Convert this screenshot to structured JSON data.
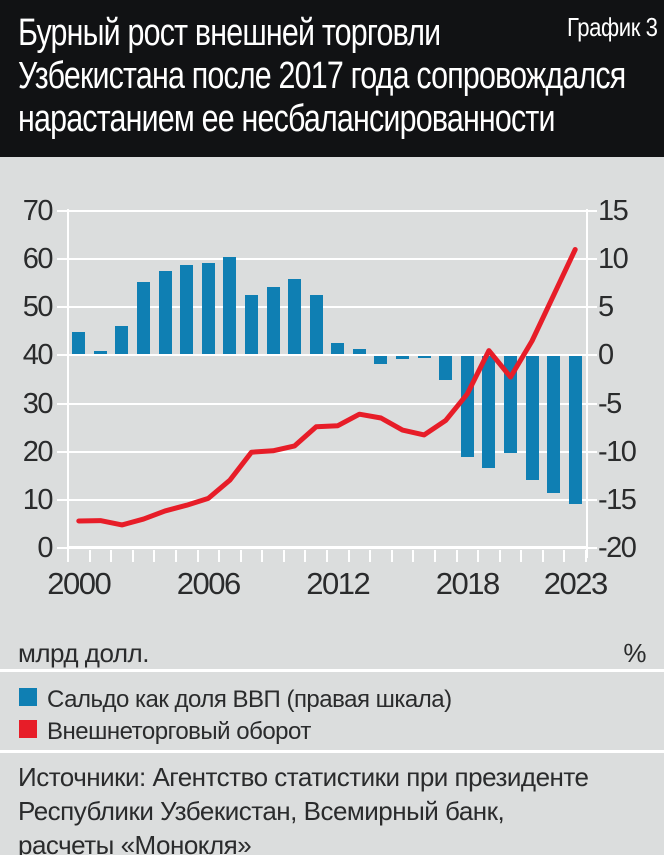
{
  "header": {
    "title_lines": [
      "Бурный рост внешней торговли",
      "Узбекистана после 2017 года сопровождался",
      "нарастанием ее несбалансированности"
    ],
    "corner_label": "График 3"
  },
  "chart_data": {
    "type": "bar+line",
    "x": [
      2000,
      2001,
      2002,
      2003,
      2004,
      2005,
      2006,
      2007,
      2008,
      2009,
      2010,
      2011,
      2012,
      2013,
      2014,
      2015,
      2016,
      2017,
      2018,
      2019,
      2020,
      2021,
      2022,
      2023
    ],
    "x_axis": {
      "tick_labels": [
        "2000",
        "2006",
        "2012",
        "2018",
        "2023"
      ],
      "tick_years": [
        2000,
        2006,
        2012,
        2018,
        2023
      ]
    },
    "left_axis": {
      "unit": "млрд долл.",
      "min": 0,
      "max": 70,
      "ticks": [
        0,
        10,
        20,
        30,
        40,
        50,
        60,
        70
      ]
    },
    "right_axis": {
      "unit": "%",
      "min": -20,
      "max": 15,
      "ticks": [
        -20,
        -15,
        -10,
        -5,
        0,
        5,
        10,
        15
      ]
    },
    "grid": true,
    "legend_position": "bottom",
    "series": [
      {
        "name": "Сальдо как доля ВВП (правая шкала)",
        "type": "bar",
        "axis": "right",
        "color": "#0f7fb3",
        "values": [
          2.3,
          0.3,
          2.9,
          7.5,
          8.6,
          9.2,
          9.4,
          10.1,
          6.1,
          7.0,
          7.8,
          6.1,
          1.1,
          0.55,
          -0.8,
          -0.3,
          -0.25,
          -2.5,
          -10.5,
          -11.6,
          -10.1,
          -12.9,
          -14.2,
          -15.4
        ]
      },
      {
        "name": "Внешнеторговый оборот",
        "type": "line",
        "axis": "left",
        "color": "#e71d28",
        "values": [
          5.6,
          5.7,
          4.8,
          6.0,
          7.7,
          8.9,
          10.3,
          14.1,
          19.9,
          20.2,
          21.2,
          25.2,
          25.4,
          27.8,
          27.0,
          24.5,
          23.5,
          26.5,
          32.0,
          41.0,
          35.5,
          43.0,
          52.5,
          62.0
        ]
      }
    ]
  },
  "legend": {
    "items": [
      {
        "label": "Сальдо как доля ВВП (правая шкала)",
        "color": "#0f7fb3"
      },
      {
        "label": "Внешнеторговый оборот",
        "color": "#e71d28"
      }
    ]
  },
  "sources": {
    "lines": [
      "Источники: Агентство статистики при президенте",
      "Республики Узбекистан, Всемирный банк,",
      "расчеты «Монокля»"
    ]
  },
  "colors": {
    "background": "#dbdddd",
    "header_background": "#111214",
    "grid": "#ffffff",
    "text": "#2a2b2c",
    "title_text": "#ffffff"
  }
}
